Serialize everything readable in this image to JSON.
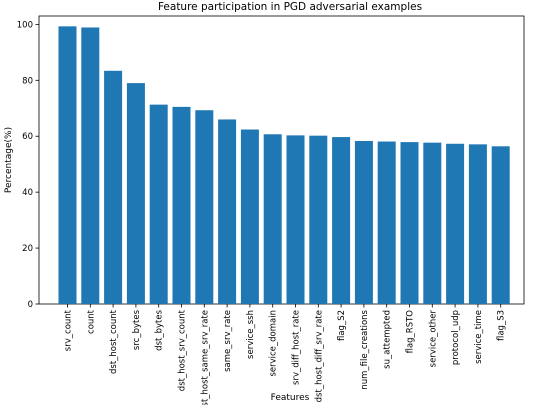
{
  "chart_data": {
    "type": "bar",
    "title": "Feature participation in PGD adversarial examples",
    "xlabel": "Features",
    "ylabel": "Percentage(%)",
    "ylim": [
      0,
      103
    ],
    "yticks": [
      0,
      20,
      40,
      60,
      80,
      100
    ],
    "grid": false,
    "bar_color": "#1f77b4",
    "categories": [
      "srv_count",
      "count",
      "dst_host_count",
      "src_bytes",
      "dst_bytes",
      "dst_host_srv_count",
      "dst_host_same_srv_rate",
      "same_srv_rate",
      "service_ssh",
      "service_domain",
      "srv_diff_host_rate",
      "dst_host_diff_srv_rate",
      "flag_S2",
      "num_file_creations",
      "su_attempted",
      "flag_RSTO",
      "service_other",
      "protocol_udp",
      "service_time",
      "flag_S3"
    ],
    "values": [
      99.3,
      98.9,
      83.4,
      79.0,
      71.3,
      70.5,
      69.3,
      66.0,
      62.4,
      60.7,
      60.3,
      60.2,
      59.7,
      58.3,
      58.1,
      57.9,
      57.7,
      57.3,
      57.1,
      56.4
    ]
  }
}
